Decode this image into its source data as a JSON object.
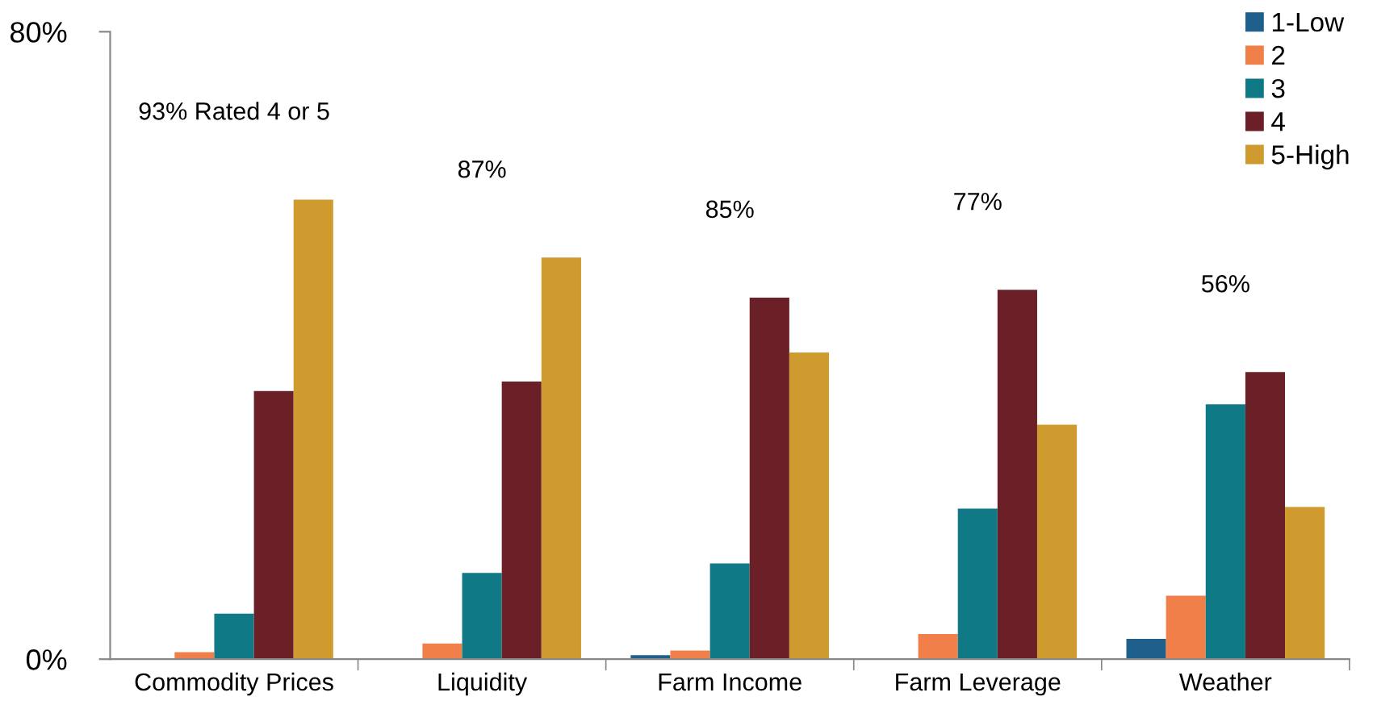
{
  "chart_data": {
    "type": "bar",
    "categories": [
      "Commodity Prices",
      "Liquidity",
      "Farm Income",
      "Farm Leverage",
      "Weather"
    ],
    "series": [
      {
        "name": "1-Low",
        "color": "#1f5f8b",
        "values": [
          0,
          0,
          0.5,
          0,
          2.6
        ]
      },
      {
        "name": "2",
        "color": "#f07f4a",
        "values": [
          0.9,
          2,
          1.1,
          3.2,
          8.1
        ]
      },
      {
        "name": "3",
        "color": "#0f7a85",
        "values": [
          5.8,
          11,
          12.2,
          19.2,
          32.5
        ]
      },
      {
        "name": "4",
        "color": "#6b2027",
        "values": [
          34.2,
          35.4,
          46.1,
          47.1,
          36.6
        ]
      },
      {
        "name": "5-High",
        "color": "#cf9a2e",
        "values": [
          58.6,
          51.2,
          39.1,
          29.9,
          19.4
        ]
      }
    ],
    "ylim": [
      0,
      80
    ],
    "yticks": [
      {
        "value": 0,
        "label": "0%"
      },
      {
        "value": 80,
        "label": "80%"
      }
    ],
    "annotations": [
      "93% Rated 4 or 5",
      "87%",
      "85%",
      "77%",
      "56%"
    ],
    "grid": false,
    "legend": "top right"
  }
}
